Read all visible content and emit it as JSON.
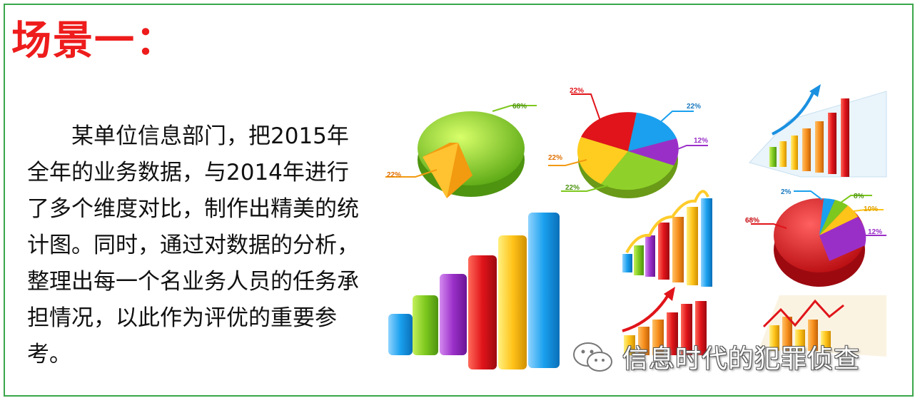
{
  "slide": {
    "title": "场景一：",
    "paragraph": "某单位信息部门，把2015年全年的业务数据，与2014年进行了多个维度对比，制作出精美的统计图。同时，通过对数据的分析，整理出每一个名业务人员的任务承担情况，以此作为评优的重要参考。"
  },
  "illustration": {
    "pie_green": {
      "labels": [
        "68%",
        "22%"
      ]
    },
    "pie_multi": {
      "labels": [
        "22%",
        "22%",
        "12%",
        "22%",
        "22%"
      ]
    },
    "pie_red": {
      "labels": [
        "2%",
        "8%",
        "10%",
        "12%",
        "68%"
      ]
    }
  },
  "watermark": {
    "text": "信息时代的犯罪侦查",
    "icon": "wechat-icon"
  },
  "colors": {
    "title": "#ee1c1c",
    "border": "#3aa64a"
  }
}
